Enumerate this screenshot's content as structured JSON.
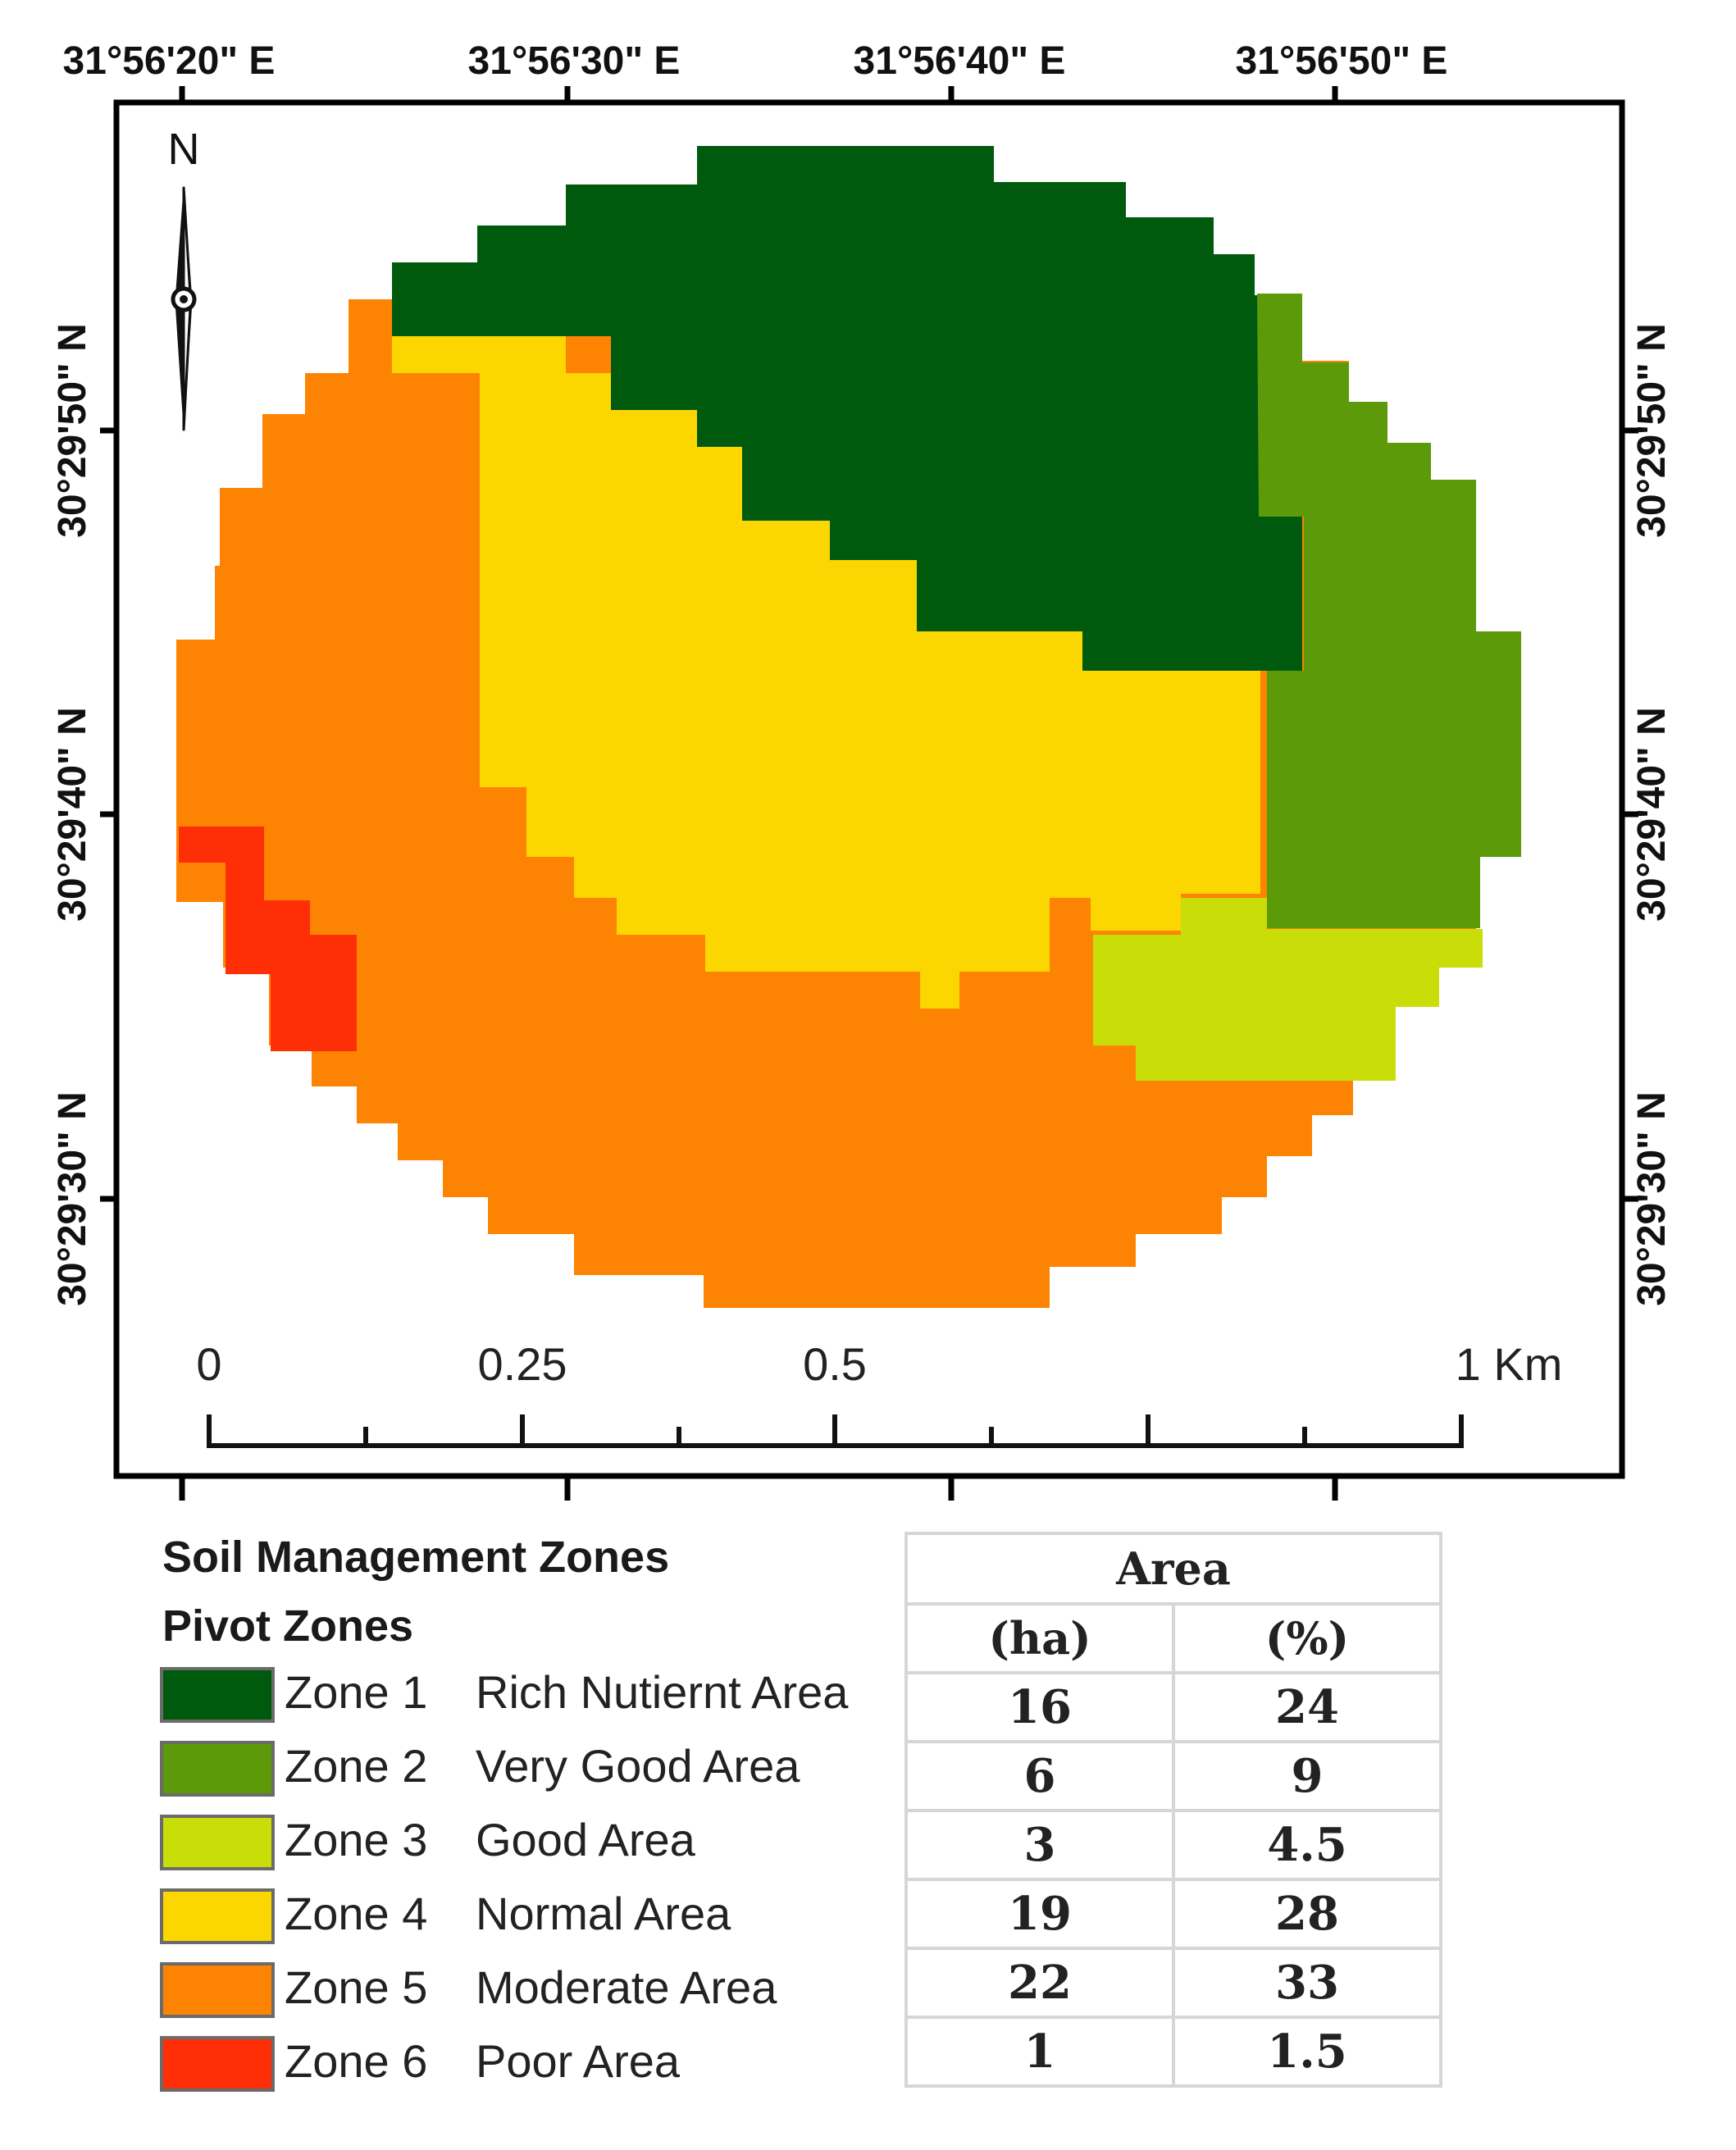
{
  "map": {
    "lon_labels": [
      "31°56'20\" E",
      "31°56'30\" E",
      "31°56'40\" E",
      "31°56'50\" E"
    ],
    "lat_labels": [
      "30°29'50\" N",
      "30°29'40\" N",
      "30°29'30\" N"
    ],
    "north_label": "N",
    "scale_labels": [
      "0",
      "0.25",
      "0.5",
      "1 Km"
    ]
  },
  "legend": {
    "title": "Soil Management Zones",
    "subtitle": "Pivot Zones",
    "zones": [
      {
        "name": "Zone 1",
        "desc": "Rich Nutiernt Area",
        "color": "#005a0e"
      },
      {
        "name": "Zone 2",
        "desc": "Very Good Area",
        "color": "#5c9a0a"
      },
      {
        "name": "Zone 3",
        "desc": "Good Area",
        "color": "#c9de08"
      },
      {
        "name": "Zone 4",
        "desc": "Normal Area",
        "color": "#fcd601"
      },
      {
        "name": "Zone 5",
        "desc": "Moderate Area",
        "color": "#fd8403"
      },
      {
        "name": "Zone 6",
        "desc": "Poor Area",
        "color": "#fe2e06"
      }
    ]
  },
  "table": {
    "header": "Area",
    "col_ha": "(ha)",
    "col_pct": "(%)",
    "rows": [
      {
        "ha": "16",
        "pct": "24"
      },
      {
        "ha": "6",
        "pct": "9"
      },
      {
        "ha": "3",
        "pct": "4.5"
      },
      {
        "ha": "19",
        "pct": "28"
      },
      {
        "ha": "22",
        "pct": "33"
      },
      {
        "ha": "1",
        "pct": "1.5"
      }
    ]
  }
}
